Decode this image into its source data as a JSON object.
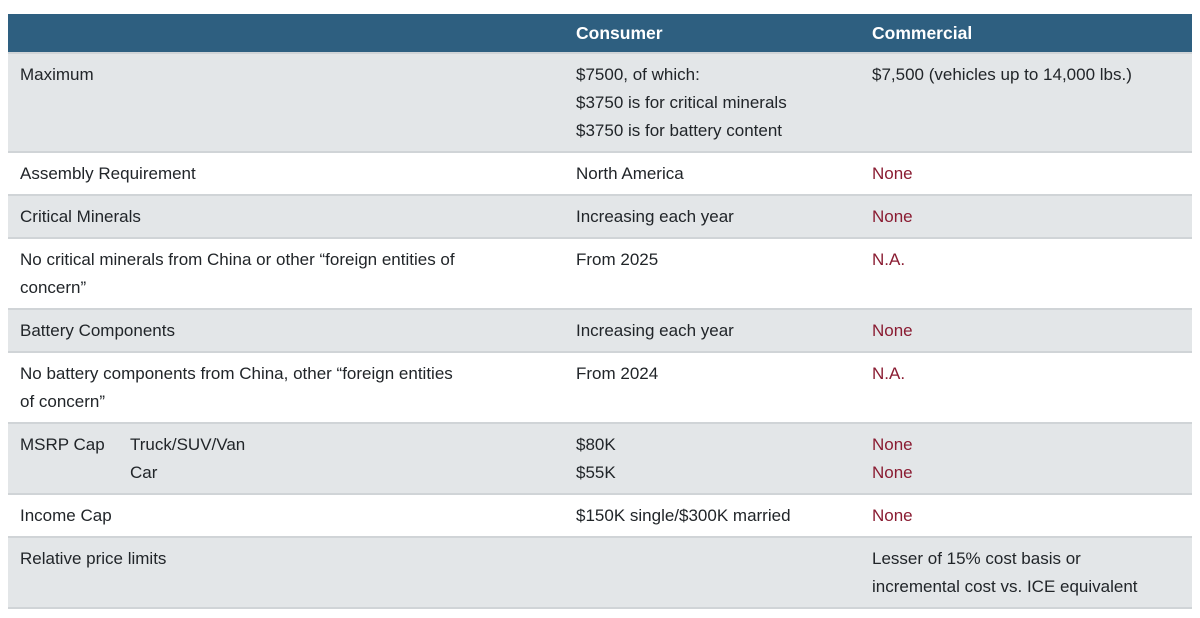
{
  "colors": {
    "header_bg": "#2e5f80",
    "header_text": "#ffffff",
    "row_alt_bg": "#e3e6e8",
    "row_bg": "#ffffff",
    "body_text": "#212529",
    "negative_text": "#8a1c32",
    "divider": "#d0d4d7"
  },
  "table": {
    "header": {
      "label": "",
      "consumer": "Consumer",
      "commercial": "Commercial"
    },
    "rows": [
      {
        "label_lines": [
          "Maximum"
        ],
        "consumer_lines": [
          "$7500, of which:",
          "$3750 is for critical minerals",
          "$3750 is for battery content"
        ],
        "commercial_lines": [
          "$7,500 (vehicles up to 14,000 lbs.)"
        ],
        "commercial_negative": false
      },
      {
        "label_lines": [
          "Assembly Requirement"
        ],
        "consumer_lines": [
          "North America"
        ],
        "commercial_lines": [
          "None"
        ],
        "commercial_negative": true
      },
      {
        "label_lines": [
          "Critical Minerals"
        ],
        "consumer_lines": [
          "Increasing each year"
        ],
        "commercial_lines": [
          "None"
        ],
        "commercial_negative": true
      },
      {
        "label_lines": [
          "No critical minerals from China or other “foreign entities of",
          "concern”"
        ],
        "consumer_lines": [
          "From 2025"
        ],
        "commercial_lines": [
          "N.A."
        ],
        "commercial_negative": true
      },
      {
        "label_lines": [
          "Battery Components"
        ],
        "consumer_lines": [
          "Increasing each year"
        ],
        "commercial_lines": [
          "None"
        ],
        "commercial_negative": true
      },
      {
        "label_lines": [
          "No battery components from China, other “foreign entities",
          "of concern”"
        ],
        "consumer_lines": [
          "From 2024"
        ],
        "commercial_lines": [
          "N.A."
        ],
        "commercial_negative": true
      },
      {
        "label_main": "MSRP Cap",
        "label_sub_lines": [
          "Truck/SUV/Van",
          "Car"
        ],
        "consumer_lines": [
          "$80K",
          "$55K"
        ],
        "commercial_lines": [
          "None",
          "None"
        ],
        "commercial_negative": true
      },
      {
        "label_lines": [
          "Income Cap"
        ],
        "consumer_lines": [
          "$150K single/$300K married"
        ],
        "commercial_lines": [
          "None"
        ],
        "commercial_negative": true
      },
      {
        "label_lines": [
          "Relative price limits"
        ],
        "consumer_lines": [],
        "commercial_lines": [
          "Lesser of 15% cost basis or",
          "incremental cost vs. ICE equivalent"
        ],
        "commercial_negative": false
      }
    ]
  }
}
